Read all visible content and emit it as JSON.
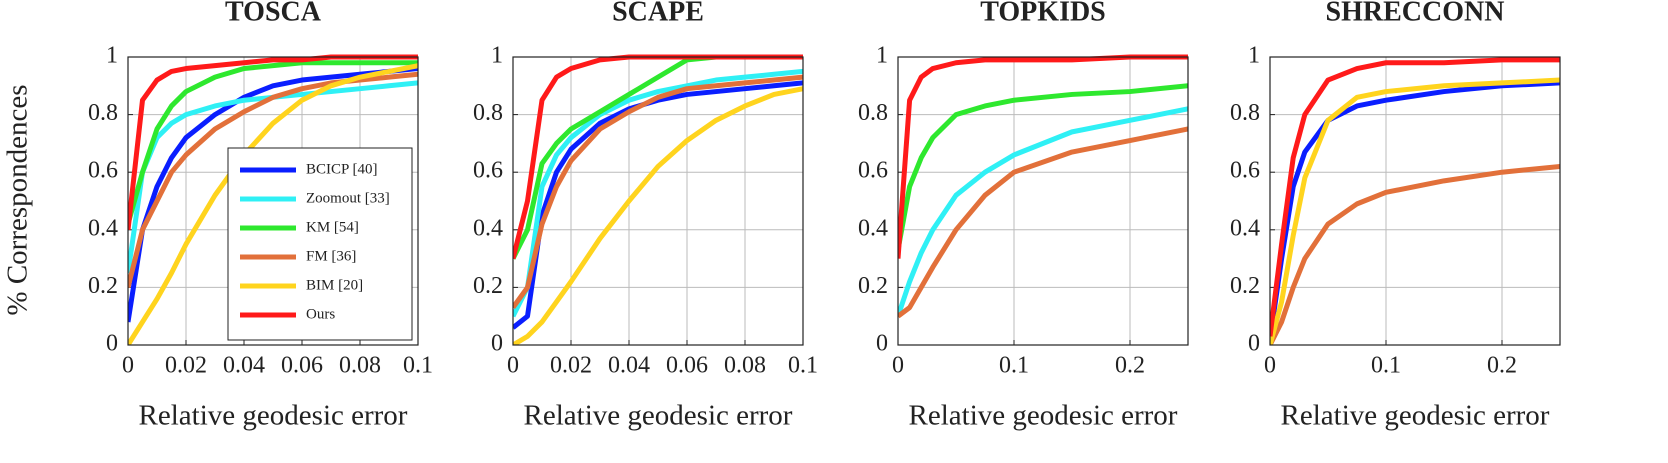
{
  "chart_data": [
    {
      "type": "line",
      "title": "TOSCA",
      "x_label": "Relative geodesic error",
      "y_label": "% Correspondences",
      "x": [
        0,
        0.005,
        0.01,
        0.015,
        0.02,
        0.03,
        0.04,
        0.05,
        0.06,
        0.07,
        0.08,
        0.09,
        0.1
      ],
      "series": [
        {
          "name": "BCICP [40]",
          "color": "#0a1eff",
          "values": [
            0.08,
            0.4,
            0.55,
            0.65,
            0.72,
            0.8,
            0.86,
            0.9,
            0.92,
            0.93,
            0.94,
            0.95,
            0.96
          ]
        },
        {
          "name": "Zoomout [33]",
          "color": "#2ff0f5",
          "values": [
            0.25,
            0.6,
            0.72,
            0.77,
            0.8,
            0.83,
            0.85,
            0.86,
            0.87,
            0.88,
            0.89,
            0.9,
            0.91
          ]
        },
        {
          "name": "KM [54]",
          "color": "#2ee82e",
          "values": [
            0.42,
            0.6,
            0.75,
            0.83,
            0.88,
            0.93,
            0.96,
            0.97,
            0.98,
            0.98,
            0.98,
            0.98,
            0.98
          ]
        },
        {
          "name": "FM [36]",
          "color": "#e2703a",
          "values": [
            0.2,
            0.4,
            0.5,
            0.6,
            0.66,
            0.75,
            0.81,
            0.86,
            0.89,
            0.91,
            0.92,
            0.93,
            0.94
          ]
        },
        {
          "name": "BIM [20]",
          "color": "#ffd41e",
          "values": [
            0,
            0.08,
            0.16,
            0.25,
            0.35,
            0.52,
            0.66,
            0.77,
            0.85,
            0.9,
            0.93,
            0.95,
            0.97
          ]
        },
        {
          "name": "Ours",
          "color": "#ff1a1a",
          "values": [
            0.4,
            0.85,
            0.92,
            0.95,
            0.96,
            0.97,
            0.98,
            0.99,
            0.99,
            1,
            1,
            1,
            1
          ]
        }
      ],
      "xlim": [
        0,
        0.1
      ],
      "xticks": [
        0,
        0.02,
        0.04,
        0.06,
        0.08,
        0.1
      ],
      "ylim": [
        0,
        1
      ],
      "yticks": [
        0,
        0.2,
        0.4,
        0.6,
        0.8,
        1
      ],
      "grid": true,
      "legend": "lower right"
    },
    {
      "type": "line",
      "title": "SCAPE",
      "x_label": "Relative geodesic error",
      "x": [
        0,
        0.005,
        0.01,
        0.015,
        0.02,
        0.03,
        0.04,
        0.05,
        0.06,
        0.07,
        0.08,
        0.09,
        0.1
      ],
      "series": [
        {
          "color": "#0a1eff",
          "values": [
            0.06,
            0.1,
            0.45,
            0.6,
            0.68,
            0.77,
            0.82,
            0.85,
            0.87,
            0.88,
            0.89,
            0.9,
            0.91
          ]
        },
        {
          "color": "#2ff0f5",
          "values": [
            0.1,
            0.2,
            0.55,
            0.66,
            0.72,
            0.8,
            0.85,
            0.88,
            0.9,
            0.92,
            0.93,
            0.94,
            0.95
          ]
        },
        {
          "color": "#2ee82e",
          "values": [
            0.3,
            0.4,
            0.63,
            0.7,
            0.75,
            0.81,
            0.87,
            0.93,
            0.99,
            1,
            1,
            1,
            1
          ]
        },
        {
          "color": "#e2703a",
          "values": [
            0.13,
            0.2,
            0.42,
            0.55,
            0.64,
            0.75,
            0.81,
            0.86,
            0.89,
            0.9,
            0.91,
            0.92,
            0.93
          ]
        },
        {
          "color": "#ffd41e",
          "values": [
            0,
            0.03,
            0.08,
            0.15,
            0.22,
            0.37,
            0.5,
            0.62,
            0.71,
            0.78,
            0.83,
            0.87,
            0.89
          ]
        },
        {
          "color": "#ff1a1a",
          "values": [
            0.3,
            0.5,
            0.85,
            0.93,
            0.96,
            0.99,
            1,
            1,
            1,
            1,
            1,
            1,
            1
          ]
        }
      ],
      "xlim": [
        0,
        0.1
      ],
      "xticks": [
        0,
        0.02,
        0.04,
        0.06,
        0.08,
        0.1
      ],
      "ylim": [
        0,
        1
      ],
      "yticks": [
        0,
        0.2,
        0.4,
        0.6,
        0.8,
        1
      ],
      "grid": true
    },
    {
      "type": "line",
      "title": "TOPKIDS",
      "x_label": "Relative geodesic error",
      "x": [
        0,
        0.01,
        0.02,
        0.03,
        0.05,
        0.075,
        0.1,
        0.15,
        0.2,
        0.25
      ],
      "series": [
        {
          "color": "#2ff0f5",
          "values": [
            0.1,
            0.22,
            0.32,
            0.4,
            0.52,
            0.6,
            0.66,
            0.74,
            0.78,
            0.82
          ]
        },
        {
          "color": "#2ee82e",
          "values": [
            0.33,
            0.55,
            0.65,
            0.72,
            0.8,
            0.83,
            0.85,
            0.87,
            0.88,
            0.9
          ]
        },
        {
          "color": "#e2703a",
          "values": [
            0.1,
            0.13,
            0.2,
            0.27,
            0.4,
            0.52,
            0.6,
            0.67,
            0.71,
            0.75
          ]
        },
        {
          "color": "#ff1a1a",
          "values": [
            0.3,
            0.85,
            0.93,
            0.96,
            0.98,
            0.99,
            0.99,
            0.99,
            1,
            1
          ]
        }
      ],
      "xlim": [
        0,
        0.25
      ],
      "xticks": [
        0,
        0.1,
        0.2
      ],
      "ylim": [
        0,
        1
      ],
      "yticks": [
        0,
        0.2,
        0.4,
        0.6,
        0.8,
        1
      ],
      "grid": true
    },
    {
      "type": "line",
      "title": "SHRECCONN",
      "x_label": "Relative geodesic error",
      "x": [
        0,
        0.01,
        0.02,
        0.03,
        0.05,
        0.075,
        0.1,
        0.15,
        0.2,
        0.25
      ],
      "series": [
        {
          "color": "#0a1eff",
          "values": [
            0.02,
            0.3,
            0.55,
            0.67,
            0.78,
            0.83,
            0.85,
            0.88,
            0.9,
            0.91
          ]
        },
        {
          "color": "#e2703a",
          "values": [
            0,
            0.08,
            0.2,
            0.3,
            0.42,
            0.49,
            0.53,
            0.57,
            0.6,
            0.62
          ]
        },
        {
          "color": "#ffd41e",
          "values": [
            0,
            0.15,
            0.38,
            0.58,
            0.78,
            0.86,
            0.88,
            0.9,
            0.91,
            0.92
          ]
        },
        {
          "color": "#ff1a1a",
          "values": [
            0.03,
            0.35,
            0.65,
            0.8,
            0.92,
            0.96,
            0.98,
            0.98,
            0.99,
            0.99
          ]
        }
      ],
      "xlim": [
        0,
        0.25
      ],
      "xticks": [
        0,
        0.1,
        0.2
      ],
      "ylim": [
        0,
        1
      ],
      "yticks": [
        0,
        0.2,
        0.4,
        0.6,
        0.8,
        1
      ],
      "grid": true
    }
  ]
}
